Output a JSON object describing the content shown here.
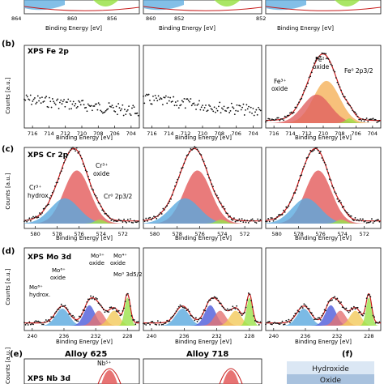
{
  "colors": {
    "hydroxide": "#5aa9df",
    "oxide": "#e35a5a",
    "metal": "#9be24a",
    "fe3": "#e06060",
    "fe2": "#f5b25a",
    "mo4": "#f2c95a",
    "mo5": "#e57373",
    "mo6ox": "#4e5bd9",
    "envelope": "#c81e1e",
    "points": "#111111"
  },
  "panel_a": {
    "xlabel": "Binding Energy [eV]",
    "ticks": [
      "864",
      "860",
      "856",
      "852"
    ]
  },
  "panel_b": {
    "tag": "(b)",
    "title": "XPS Fe 2p",
    "ylabel": "Counts [a.u.]",
    "xlabel": "Binding Energy [eV]",
    "ticks": [
      "716",
      "714",
      "712",
      "710",
      "708",
      "706",
      "704"
    ],
    "ann": {
      "fe2": [
        "Fe²⁺",
        "oxide"
      ],
      "fe3": [
        "Fe³⁺",
        "oxide"
      ],
      "fe0": "Fe⁰ 2p3/2"
    }
  },
  "panel_c": {
    "tag": "(c)",
    "title": "XPS Cr 2p",
    "ylabel": "Counts [a.u.]",
    "xlabel": "Binding Energy [eV]",
    "ticks": [
      "580",
      "578",
      "576",
      "574",
      "572"
    ],
    "ann": {
      "cr3ox": [
        "Cr³⁺",
        "oxide"
      ],
      "cr3hy": [
        "Cr³⁺",
        "hydrox."
      ],
      "cr0": "Cr⁰ 2p3/2"
    }
  },
  "panel_d": {
    "tag": "(d)",
    "title": "XPS Mo 3d",
    "ylabel": "Counts [a.u.]",
    "xlabel": "Binding Energy [eV]",
    "ticks": [
      "240",
      "236",
      "232",
      "228"
    ],
    "ann": {
      "mo6hy": [
        "Mo⁶⁺",
        "hydrox."
      ],
      "mo6ox": [
        "Mo⁶⁺",
        "oxide"
      ],
      "mo5": [
        "Mo⁵⁺",
        "oxide"
      ],
      "mo4": [
        "Mo⁴⁺",
        "oxide"
      ],
      "mo0": "Mo⁰ 3d5/2"
    }
  },
  "panel_e": {
    "tag": "(e)",
    "title": "XPS Nb 3d",
    "ann": "Nb⁵⁺",
    "ylabel": "Counts [a.u.]",
    "col1": "Alloy 625",
    "col2": "Alloy 718"
  },
  "panel_f": {
    "tag": "(f)",
    "layer1": "Hydroxide",
    "layer2": "Oxide"
  },
  "chart_data": [
    {
      "type": "line",
      "panel": "b",
      "title": "XPS Fe 2p",
      "xlabel": "Binding Energy [eV]",
      "ylabel": "Counts [a.u.]",
      "xlim": [
        717,
        703
      ],
      "series": [
        {
          "name": "Fe²⁺ oxide",
          "component": "fe2",
          "center": 709.6,
          "height": 0.62,
          "width": 1.6
        },
        {
          "name": "Fe³⁺ oxide",
          "component": "fe3",
          "center": 710.8,
          "height": 0.42,
          "width": 1.7
        },
        {
          "name": "Fe⁰ 2p3/2",
          "component": "metal",
          "center": 706.8,
          "height": 0.07,
          "width": 0.5
        }
      ]
    },
    {
      "type": "line",
      "panel": "c",
      "title": "XPS Cr 2p",
      "xlabel": "Binding Energy [eV]",
      "ylabel": "Counts [a.u.]",
      "xlim": [
        581,
        570.5
      ],
      "series": [
        {
          "name": "Cr³⁺ oxide",
          "component": "oxide",
          "center": 576.2,
          "height": 0.8,
          "width": 1.2
        },
        {
          "name": "Cr³⁺ hydrox.",
          "component": "hydroxide",
          "center": 577.3,
          "height": 0.38,
          "width": 1.3
        },
        {
          "name": "Cr⁰ 2p3/2",
          "component": "metal",
          "center": 574.1,
          "height": 0.06,
          "width": 0.45
        }
      ]
    },
    {
      "type": "line",
      "panel": "d",
      "title": "XPS Mo 3d",
      "xlabel": "Binding Energy [eV]",
      "ylabel": "Counts [a.u.]",
      "xlim": [
        241,
        226.5
      ],
      "series": [
        {
          "name": "Mo⁶⁺ hydrox.",
          "component": "hydroxide",
          "center": 236.2,
          "height": 0.25,
          "width": 0.85
        },
        {
          "name": "Mo⁶⁺ oxide",
          "component": "mo6ox",
          "center": 232.8,
          "height": 0.3,
          "width": 0.7
        },
        {
          "name": "Mo⁵⁺ oxide",
          "component": "mo5",
          "center": 231.6,
          "height": 0.22,
          "width": 0.7
        },
        {
          "name": "Mo⁴⁺ oxide",
          "component": "mo4",
          "center": 229.7,
          "height": 0.22,
          "width": 0.7
        },
        {
          "name": "Mo⁰ 3d5/2",
          "component": "metal",
          "center": 228.0,
          "height": 0.42,
          "width": 0.35
        }
      ]
    }
  ]
}
